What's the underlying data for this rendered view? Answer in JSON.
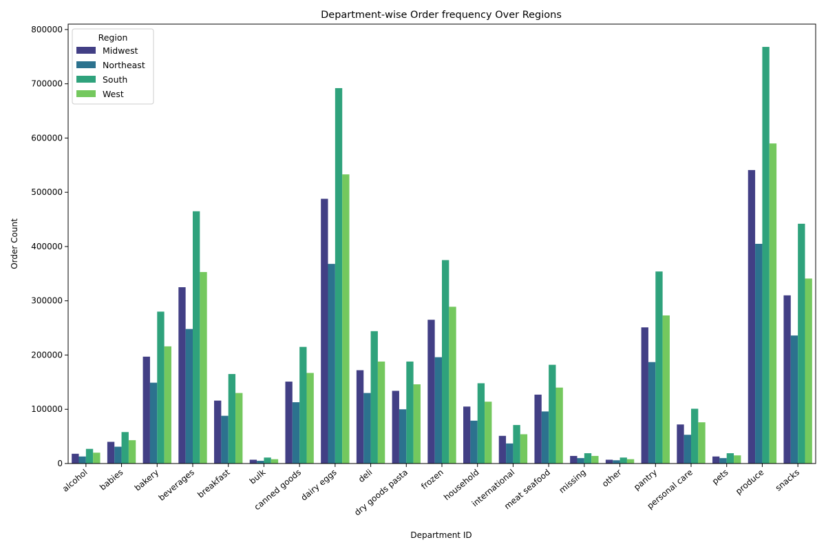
{
  "chart_data": {
    "type": "bar",
    "title": "Department-wise Order frequency Over Regions",
    "xlabel": "Department ID",
    "ylabel": "Order Count",
    "ylim": [
      0,
      810000
    ],
    "yticks": [
      0,
      100000,
      200000,
      300000,
      400000,
      500000,
      600000,
      700000,
      800000
    ],
    "grid": false,
    "legend": {
      "title": "Region",
      "placement": "top-left"
    },
    "colors": [
      "#423f85",
      "#2c728e",
      "#2fa27c",
      "#74c85e"
    ],
    "categories": [
      "alcohol",
      "babies",
      "bakery",
      "beverages",
      "breakfast",
      "bulk",
      "canned goods",
      "dairy eggs",
      "deli",
      "dry goods pasta",
      "frozen",
      "household",
      "international",
      "meat seafood",
      "missing",
      "other",
      "pantry",
      "personal care",
      "pets",
      "produce",
      "snacks"
    ],
    "series": [
      {
        "name": "Midwest",
        "values": [
          18000,
          40000,
          197000,
          325000,
          116000,
          7000,
          151000,
          488000,
          172000,
          134000,
          265000,
          105000,
          51000,
          127000,
          14000,
          7000,
          251000,
          72000,
          13000,
          541000,
          310000
        ]
      },
      {
        "name": "Northeast",
        "values": [
          13000,
          31000,
          149000,
          248000,
          88000,
          5000,
          113000,
          368000,
          130000,
          100000,
          196000,
          79000,
          37000,
          96000,
          10000,
          6000,
          187000,
          53000,
          10000,
          405000,
          236000
        ]
      },
      {
        "name": "South",
        "values": [
          27000,
          58000,
          280000,
          465000,
          165000,
          11000,
          215000,
          692000,
          244000,
          188000,
          375000,
          148000,
          71000,
          182000,
          19000,
          11000,
          354000,
          101000,
          19000,
          768000,
          442000
        ]
      },
      {
        "name": "West",
        "values": [
          20000,
          43000,
          216000,
          353000,
          130000,
          8000,
          167000,
          533000,
          188000,
          146000,
          289000,
          114000,
          54000,
          140000,
          14000,
          8000,
          273000,
          76000,
          15000,
          590000,
          341000
        ]
      }
    ]
  }
}
